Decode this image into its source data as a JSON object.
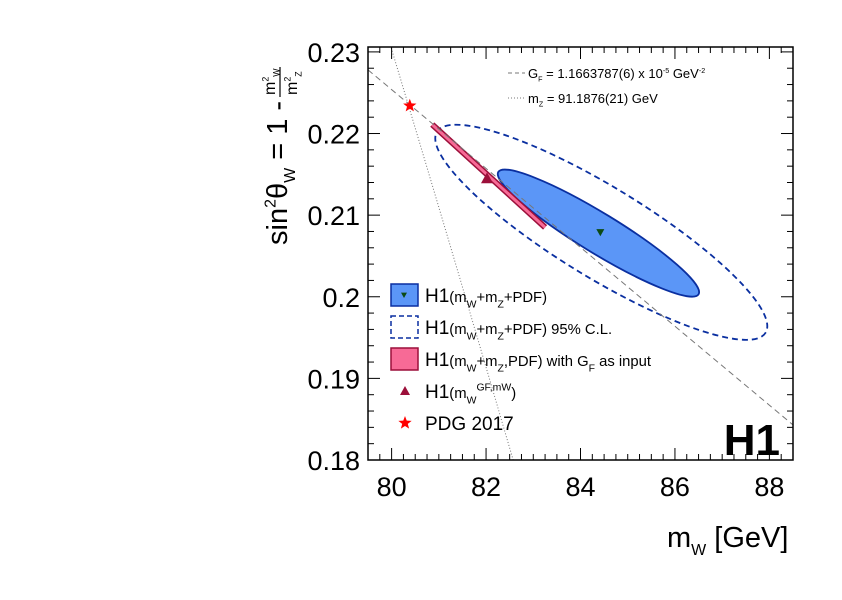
{
  "chart_data": {
    "type": "scatter",
    "title": "",
    "xlabel": [
      {
        "t": "m"
      },
      {
        "t": "W",
        "sub": true
      },
      {
        "t": " [GeV]"
      }
    ],
    "ylabel": [
      {
        "t": "sin"
      },
      {
        "t": "2",
        "sup": true
      },
      {
        "t": "θ"
      },
      {
        "t": "W",
        "sub": true
      },
      {
        "t": " = 1 - "
      }
    ],
    "ylabel_fraction": {
      "num": [
        {
          "t": "m"
        },
        {
          "t": "2",
          "sup": true
        },
        {
          "t": "W",
          "sub": true
        }
      ],
      "den": [
        {
          "t": "m"
        },
        {
          "t": "2",
          "sup": true
        },
        {
          "t": "Z",
          "sub": true
        }
      ]
    },
    "xlim": [
      79.5,
      88.5
    ],
    "ylim": [
      0.18,
      0.2306
    ],
    "xticks": [
      {
        "v": 80,
        "label": "80"
      },
      {
        "v": 82,
        "label": "82"
      },
      {
        "v": 84,
        "label": "84"
      },
      {
        "v": 86,
        "label": "86"
      },
      {
        "v": 88,
        "label": "88"
      }
    ],
    "yticks": [
      {
        "v": 0.18,
        "label": "0.18"
      },
      {
        "v": 0.19,
        "label": "0.19"
      },
      {
        "v": 0.2,
        "label": "0.2"
      },
      {
        "v": 0.21,
        "label": "0.21"
      },
      {
        "v": 0.22,
        "label": "0.22"
      },
      {
        "v": 0.23,
        "label": "0.23"
      }
    ],
    "logo": "H1",
    "colors": {
      "fill_blue": "#5b96f7",
      "edge_blue": "#0a2fa0",
      "fill_pink": "#f76a96",
      "edge_pink": "#9c0f3a",
      "triangle": "#9c0f3a",
      "star": "#ff0000",
      "marker_dark": "#0c4a14"
    },
    "series": [
      {
        "name": "H1 (mW+mZ+PDF) 68% ellipse",
        "kind": "ellipse",
        "center": [
          84.38,
          0.2078
        ],
        "major_tip": [
          86.5,
          0.2003
        ],
        "axis_ratio": 0.17,
        "style": "filled"
      },
      {
        "name": "H1 (mW+mZ+PDF) 95% C.L.",
        "kind": "ellipse",
        "center": [
          84.44,
          0.2079
        ],
        "major_tip": [
          87.92,
          0.1956
        ],
        "axis_ratio": 0.235,
        "style": "dashed"
      },
      {
        "name": "H1 (mW+mZ,PDF) with GF as input",
        "kind": "band",
        "from": [
          80.86,
          0.2211
        ],
        "to": [
          83.25,
          0.2085
        ]
      },
      {
        "name": "H1 central",
        "kind": "point",
        "marker": "triangle-down",
        "x": 84.42,
        "y": 0.2079
      },
      {
        "name": "H1 (mW from GF,mW)",
        "kind": "point",
        "marker": "triangle-up",
        "x": 82.02,
        "y": 0.2145
      },
      {
        "name": "PDG 2017",
        "kind": "point",
        "marker": "star",
        "x": 80.385,
        "y": 0.2234
      },
      {
        "name": "GF line",
        "kind": "line",
        "style": "dashed",
        "points": [
          [
            79.5,
            0.2278
          ],
          [
            88.5,
            0.1843
          ]
        ]
      },
      {
        "name": "mZ line",
        "kind": "curve",
        "style": "dotted",
        "mZ": 91.1876,
        "x_range": [
          79.9,
          82.6
        ]
      }
    ],
    "annotations": [
      {
        "style": "dashed",
        "text": [
          {
            "t": "G"
          },
          {
            "t": "F",
            "sub": true
          },
          {
            "t": " = 1.1663787(6) x 10"
          },
          {
            "t": "-5",
            "sup": true
          },
          {
            "t": " GeV"
          },
          {
            "t": "-2",
            "sup": true
          }
        ]
      },
      {
        "style": "dotted",
        "text": [
          {
            "t": "m"
          },
          {
            "t": "Z",
            "sub": true
          },
          {
            "t": " = 91.1876(21) GeV"
          }
        ]
      }
    ],
    "legend": {
      "placement": "bottom-left",
      "entries": [
        {
          "symbol": "filled-box",
          "text": [
            {
              "t": "H1"
            },
            {
              "t": "(m",
              "small": true
            },
            {
              "t": "W",
              "sub": true
            },
            {
              "t": "+m",
              "small": true
            },
            {
              "t": "Z",
              "sub": true
            },
            {
              "t": "+PDF)",
              "small": true
            }
          ]
        },
        {
          "symbol": "dashed-box",
          "text": [
            {
              "t": "H1"
            },
            {
              "t": "(m",
              "small": true
            },
            {
              "t": "W",
              "sub": true
            },
            {
              "t": "+m",
              "small": true
            },
            {
              "t": "Z",
              "sub": true
            },
            {
              "t": "+PDF) 95% C.L.",
              "small": true
            }
          ]
        },
        {
          "symbol": "pink-box",
          "text": [
            {
              "t": "H1"
            },
            {
              "t": "(m",
              "small": true
            },
            {
              "t": "W",
              "sub": true
            },
            {
              "t": "+m",
              "small": true
            },
            {
              "t": "Z",
              "sub": true
            },
            {
              "t": ",PDF) with G",
              "small": true
            },
            {
              "t": "F",
              "sub": true
            },
            {
              "t": " as input",
              "small": true
            }
          ]
        },
        {
          "symbol": "triangle",
          "text": [
            {
              "t": "H1"
            },
            {
              "t": "(m",
              "small": true
            },
            {
              "t": "W",
              "sub": true
            },
            {
              "t": "GF,mW",
              "sup": true
            },
            {
              "t": ")",
              "small": true
            }
          ]
        },
        {
          "symbol": "star",
          "text": [
            {
              "t": "PDG 2017"
            }
          ]
        }
      ]
    }
  }
}
